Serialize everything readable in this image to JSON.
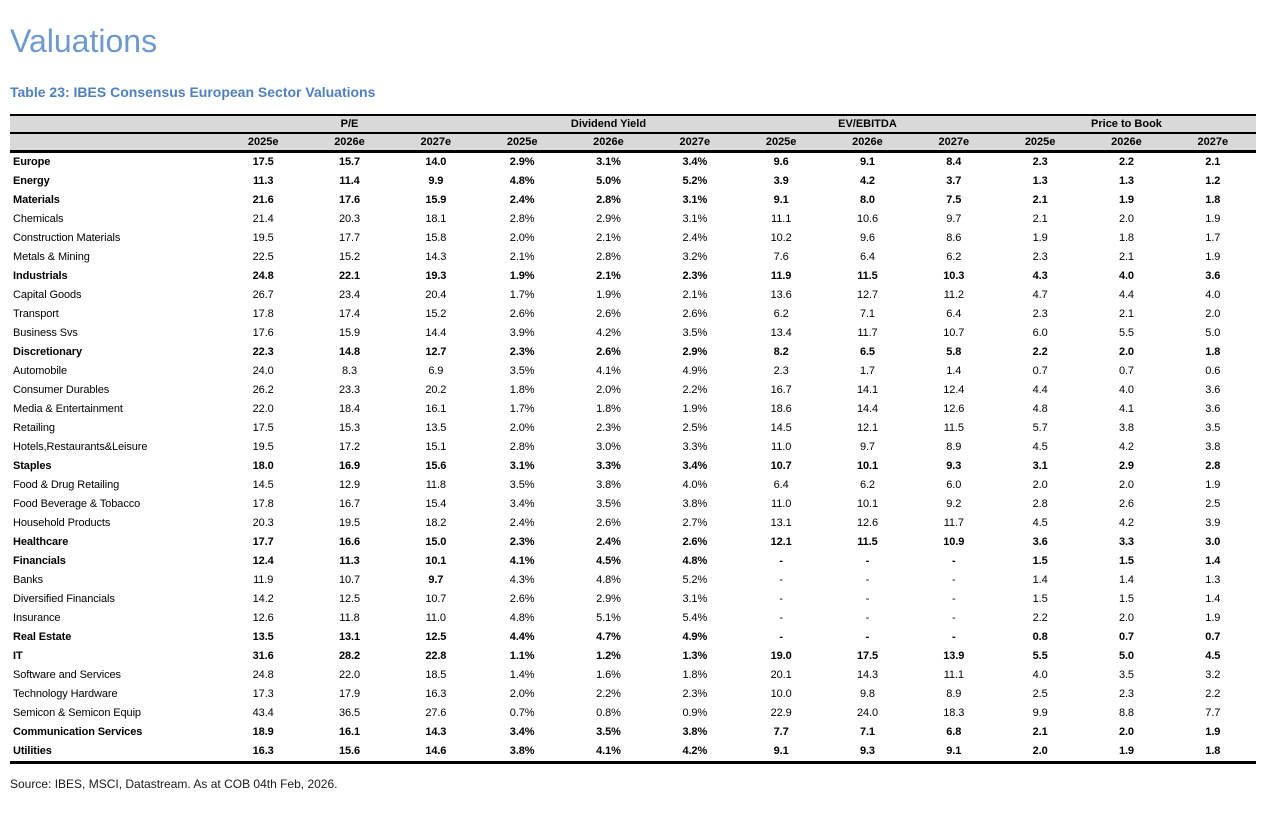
{
  "page": {
    "title": "Valuations",
    "caption": "Table 23: IBES Consensus European Sector Valuations",
    "source": "Source: IBES, MSCI, Datastream. As at COB 04th Feb, 2026."
  },
  "colors": {
    "title_blue": "#6e99cf",
    "caption_blue": "#4e7fbe",
    "header_gray": "#d9d9d9"
  },
  "table": {
    "groups": [
      "P/E",
      "Dividend Yield",
      "EV/EBITDA",
      "Price to Book"
    ],
    "year_headers": [
      "2025e",
      "2026e",
      "2027e",
      "2025e",
      "2026e",
      "2027e",
      "2025e",
      "2026e",
      "2027e",
      "2025e",
      "2026e",
      "2027e"
    ],
    "rows": [
      {
        "label": "Europe",
        "bold": true,
        "values": [
          "17.5",
          "15.7",
          "14.0",
          "2.9%",
          "3.1%",
          "3.4%",
          "9.6",
          "9.1",
          "8.4",
          "2.3",
          "2.2",
          "2.1"
        ]
      },
      {
        "label": "Energy",
        "bold": true,
        "values": [
          "11.3",
          "11.4",
          "9.9",
          "4.8%",
          "5.0%",
          "5.2%",
          "3.9",
          "4.2",
          "3.7",
          "1.3",
          "1.3",
          "1.2"
        ]
      },
      {
        "label": "Materials",
        "bold": true,
        "values": [
          "21.6",
          "17.6",
          "15.9",
          "2.4%",
          "2.8%",
          "3.1%",
          "9.1",
          "8.0",
          "7.5",
          "2.1",
          "1.9",
          "1.8"
        ]
      },
      {
        "label": "Chemicals",
        "bold": false,
        "values": [
          "21.4",
          "20.3",
          "18.1",
          "2.8%",
          "2.9%",
          "3.1%",
          "11.1",
          "10.6",
          "9.7",
          "2.1",
          "2.0",
          "1.9"
        ]
      },
      {
        "label": "Construction Materials",
        "bold": false,
        "values": [
          "19.5",
          "17.7",
          "15.8",
          "2.0%",
          "2.1%",
          "2.4%",
          "10.2",
          "9.6",
          "8.6",
          "1.9",
          "1.8",
          "1.7"
        ]
      },
      {
        "label": "Metals & Mining",
        "bold": false,
        "values": [
          "22.5",
          "15.2",
          "14.3",
          "2.1%",
          "2.8%",
          "3.2%",
          "7.6",
          "6.4",
          "6.2",
          "2.3",
          "2.1",
          "1.9"
        ]
      },
      {
        "label": "Industrials",
        "bold": true,
        "values": [
          "24.8",
          "22.1",
          "19.3",
          "1.9%",
          "2.1%",
          "2.3%",
          "11.9",
          "11.5",
          "10.3",
          "4.3",
          "4.0",
          "3.6"
        ]
      },
      {
        "label": "Capital Goods",
        "bold": false,
        "values": [
          "26.7",
          "23.4",
          "20.4",
          "1.7%",
          "1.9%",
          "2.1%",
          "13.6",
          "12.7",
          "11.2",
          "4.7",
          "4.4",
          "4.0"
        ]
      },
      {
        "label": "Transport",
        "bold": false,
        "values": [
          "17.8",
          "17.4",
          "15.2",
          "2.6%",
          "2.6%",
          "2.6%",
          "6.2",
          "7.1",
          "6.4",
          "2.3",
          "2.1",
          "2.0"
        ]
      },
      {
        "label": "Business Svs",
        "bold": false,
        "values": [
          "17.6",
          "15.9",
          "14.4",
          "3.9%",
          "4.2%",
          "3.5%",
          "13.4",
          "11.7",
          "10.7",
          "6.0",
          "5.5",
          "5.0"
        ]
      },
      {
        "label": "Discretionary",
        "bold": true,
        "values": [
          "22.3",
          "14.8",
          "12.7",
          "2.3%",
          "2.6%",
          "2.9%",
          "8.2",
          "6.5",
          "5.8",
          "2.2",
          "2.0",
          "1.8"
        ]
      },
      {
        "label": "Automobile",
        "bold": false,
        "values": [
          "24.0",
          "8.3",
          "6.9",
          "3.5%",
          "4.1%",
          "4.9%",
          "2.3",
          "1.7",
          "1.4",
          "0.7",
          "0.7",
          "0.6"
        ]
      },
      {
        "label": "Consumer Durables",
        "bold": false,
        "values": [
          "26.2",
          "23.3",
          "20.2",
          "1.8%",
          "2.0%",
          "2.2%",
          "16.7",
          "14.1",
          "12.4",
          "4.4",
          "4.0",
          "3.6"
        ]
      },
      {
        "label": "Media & Entertainment",
        "bold": false,
        "values": [
          "22.0",
          "18.4",
          "16.1",
          "1.7%",
          "1.8%",
          "1.9%",
          "18.6",
          "14.4",
          "12.6",
          "4.8",
          "4.1",
          "3.6"
        ]
      },
      {
        "label": "Retailing",
        "bold": false,
        "values": [
          "17.5",
          "15.3",
          "13.5",
          "2.0%",
          "2.3%",
          "2.5%",
          "14.5",
          "12.1",
          "11.5",
          "5.7",
          "3.8",
          "3.5"
        ]
      },
      {
        "label": "Hotels,Restaurants&Leisure",
        "bold": false,
        "values": [
          "19.5",
          "17.2",
          "15.1",
          "2.8%",
          "3.0%",
          "3.3%",
          "11.0",
          "9.7",
          "8.9",
          "4.5",
          "4.2",
          "3.8"
        ]
      },
      {
        "label": "Staples",
        "bold": true,
        "values": [
          "18.0",
          "16.9",
          "15.6",
          "3.1%",
          "3.3%",
          "3.4%",
          "10.7",
          "10.1",
          "9.3",
          "3.1",
          "2.9",
          "2.8"
        ]
      },
      {
        "label": "Food & Drug Retailing",
        "bold": false,
        "values": [
          "14.5",
          "12.9",
          "11.8",
          "3.5%",
          "3.8%",
          "4.0%",
          "6.4",
          "6.2",
          "6.0",
          "2.0",
          "2.0",
          "1.9"
        ]
      },
      {
        "label": "Food Beverage & Tobacco",
        "bold": false,
        "values": [
          "17.8",
          "16.7",
          "15.4",
          "3.4%",
          "3.5%",
          "3.8%",
          "11.0",
          "10.1",
          "9.2",
          "2.8",
          "2.6",
          "2.5"
        ]
      },
      {
        "label": "Household Products",
        "bold": false,
        "values": [
          "20.3",
          "19.5",
          "18.2",
          "2.4%",
          "2.6%",
          "2.7%",
          "13.1",
          "12.6",
          "11.7",
          "4.5",
          "4.2",
          "3.9"
        ]
      },
      {
        "label": "Healthcare",
        "bold": true,
        "values": [
          "17.7",
          "16.6",
          "15.0",
          "2.3%",
          "2.4%",
          "2.6%",
          "12.1",
          "11.5",
          "10.9",
          "3.6",
          "3.3",
          "3.0"
        ]
      },
      {
        "label": "Financials",
        "bold": true,
        "values": [
          "12.4",
          "11.3",
          "10.1",
          "4.1%",
          "4.5%",
          "4.8%",
          "-",
          "-",
          "-",
          "1.5",
          "1.5",
          "1.4"
        ]
      },
      {
        "label": "Banks",
        "bold": false,
        "bold_cells": [
          2
        ],
        "values": [
          "11.9",
          "10.7",
          "9.7",
          "4.3%",
          "4.8%",
          "5.2%",
          "-",
          "-",
          "-",
          "1.4",
          "1.4",
          "1.3"
        ]
      },
      {
        "label": "Diversified Financials",
        "bold": false,
        "values": [
          "14.2",
          "12.5",
          "10.7",
          "2.6%",
          "2.9%",
          "3.1%",
          "-",
          "-",
          "-",
          "1.5",
          "1.5",
          "1.4"
        ]
      },
      {
        "label": "Insurance",
        "bold": false,
        "values": [
          "12.6",
          "11.8",
          "11.0",
          "4.8%",
          "5.1%",
          "5.4%",
          "-",
          "-",
          "-",
          "2.2",
          "2.0",
          "1.9"
        ]
      },
      {
        "label": "Real Estate",
        "bold": true,
        "values": [
          "13.5",
          "13.1",
          "12.5",
          "4.4%",
          "4.7%",
          "4.9%",
          "-",
          "-",
          "-",
          "0.8",
          "0.7",
          "0.7"
        ]
      },
      {
        "label": "IT",
        "bold": true,
        "values": [
          "31.6",
          "28.2",
          "22.8",
          "1.1%",
          "1.2%",
          "1.3%",
          "19.0",
          "17.5",
          "13.9",
          "5.5",
          "5.0",
          "4.5"
        ]
      },
      {
        "label": "Software and Services",
        "bold": false,
        "values": [
          "24.8",
          "22.0",
          "18.5",
          "1.4%",
          "1.6%",
          "1.8%",
          "20.1",
          "14.3",
          "11.1",
          "4.0",
          "3.5",
          "3.2"
        ]
      },
      {
        "label": "Technology Hardware",
        "bold": false,
        "values": [
          "17.3",
          "17.9",
          "16.3",
          "2.0%",
          "2.2%",
          "2.3%",
          "10.0",
          "9.8",
          "8.9",
          "2.5",
          "2.3",
          "2.2"
        ]
      },
      {
        "label": "Semicon & Semicon Equip",
        "bold": false,
        "values": [
          "43.4",
          "36.5",
          "27.6",
          "0.7%",
          "0.8%",
          "0.9%",
          "22.9",
          "24.0",
          "18.3",
          "9.9",
          "8.8",
          "7.7"
        ]
      },
      {
        "label": "Communication Services",
        "bold": true,
        "values": [
          "18.9",
          "16.1",
          "14.3",
          "3.4%",
          "3.5%",
          "3.8%",
          "7.7",
          "7.1",
          "6.8",
          "2.1",
          "2.0",
          "1.9"
        ]
      },
      {
        "label": "Utilities",
        "bold": true,
        "values": [
          "16.3",
          "15.6",
          "14.6",
          "3.8%",
          "4.1%",
          "4.2%",
          "9.1",
          "9.3",
          "9.1",
          "2.0",
          "1.9",
          "1.8"
        ]
      }
    ]
  }
}
